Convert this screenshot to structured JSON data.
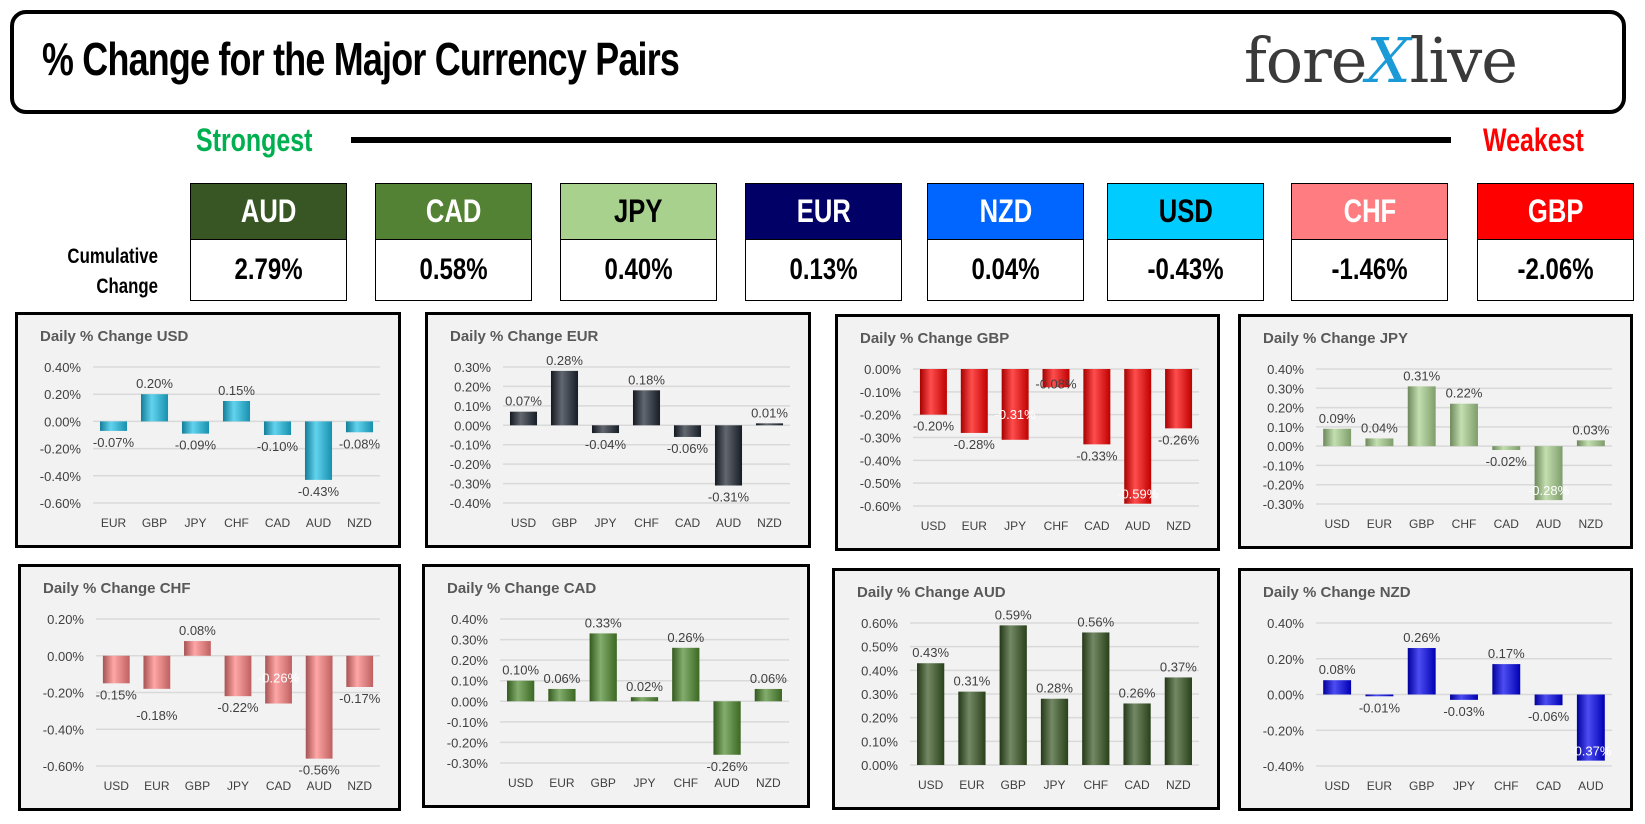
{
  "header": {
    "title": "% Change for the Major Currency Pairs",
    "logo": "forexlive"
  },
  "scale": {
    "strongest": "Strongest",
    "weakest": "Weakest",
    "strongest_color": "#00b050",
    "weakest_color": "#ff0000"
  },
  "cumulative": {
    "label_line1": "Cumulative",
    "label_line2": "Change",
    "items": [
      {
        "currency": "AUD",
        "value": "2.79%",
        "bg": "#375623",
        "fg": "#ffffff"
      },
      {
        "currency": "CAD",
        "value": "0.58%",
        "bg": "#548235",
        "fg": "#ffffff"
      },
      {
        "currency": "JPY",
        "value": "0.40%",
        "bg": "#a9d18e",
        "fg": "#000000"
      },
      {
        "currency": "EUR",
        "value": "0.13%",
        "bg": "#000066",
        "fg": "#ffffff"
      },
      {
        "currency": "NZD",
        "value": "0.04%",
        "bg": "#0066ff",
        "fg": "#ffffff"
      },
      {
        "currency": "USD",
        "value": "-0.43%",
        "bg": "#00ccff",
        "fg": "#000000"
      },
      {
        "currency": "CHF",
        "value": "-1.46%",
        "bg": "#ff7c80",
        "fg": "#ffffff"
      },
      {
        "currency": "GBP",
        "value": "-2.06%",
        "bg": "#ff0000",
        "fg": "#ffffff"
      }
    ]
  },
  "chart_data": [
    {
      "type": "bar",
      "title": "Daily % Change USD",
      "categories": [
        "EUR",
        "GBP",
        "JPY",
        "CHF",
        "CAD",
        "AUD",
        "NZD"
      ],
      "values": [
        -0.07,
        0.2,
        -0.09,
        0.15,
        -0.1,
        -0.43,
        -0.08
      ],
      "ylim": [
        -0.6,
        0.4
      ],
      "ytick_step": 0.2,
      "color": "#1ec0e8",
      "grid": true
    },
    {
      "type": "bar",
      "title": "Daily % Change EUR",
      "categories": [
        "USD",
        "GBP",
        "JPY",
        "CHF",
        "CAD",
        "AUD",
        "NZD"
      ],
      "values": [
        0.07,
        0.28,
        -0.04,
        0.18,
        -0.06,
        -0.31,
        0.01
      ],
      "ylim": [
        -0.4,
        0.3
      ],
      "ytick_step": 0.1,
      "color": "#1e2632",
      "grid": true
    },
    {
      "type": "bar",
      "title": "Daily % Change GBP",
      "categories": [
        "USD",
        "EUR",
        "JPY",
        "CHF",
        "CAD",
        "AUD",
        "NZD"
      ],
      "values": [
        -0.2,
        -0.28,
        -0.31,
        -0.08,
        -0.33,
        -0.59,
        -0.26
      ],
      "ylim": [
        -0.6,
        0.0
      ],
      "ytick_step": 0.1,
      "color": "#ff0000",
      "grid": true
    },
    {
      "type": "bar",
      "title": "Daily % Change JPY",
      "categories": [
        "USD",
        "EUR",
        "GBP",
        "CHF",
        "CAD",
        "AUD",
        "NZD"
      ],
      "values": [
        0.09,
        0.04,
        0.31,
        0.22,
        -0.02,
        -0.28,
        0.03
      ],
      "ylim": [
        -0.3,
        0.4
      ],
      "ytick_step": 0.1,
      "color": "#a9d18e",
      "grid": true
    },
    {
      "type": "bar",
      "title": "Daily % Change CHF",
      "categories": [
        "USD",
        "EUR",
        "GBP",
        "JPY",
        "CAD",
        "AUD",
        "NZD"
      ],
      "values": [
        -0.15,
        -0.18,
        0.08,
        -0.22,
        -0.26,
        -0.56,
        -0.17
      ],
      "ylim": [
        -0.6,
        0.2
      ],
      "ytick_step": 0.2,
      "color": "#ff8080",
      "grid": true
    },
    {
      "type": "bar",
      "title": "Daily % Change CAD",
      "categories": [
        "USD",
        "EUR",
        "GBP",
        "JPY",
        "CHF",
        "AUD",
        "NZD"
      ],
      "values": [
        0.1,
        0.06,
        0.33,
        0.02,
        0.26,
        -0.26,
        0.06
      ],
      "ylim": [
        -0.3,
        0.4
      ],
      "ytick_step": 0.1,
      "color": "#4e8a2e",
      "grid": true
    },
    {
      "type": "bar",
      "title": "Daily % Change AUD",
      "categories": [
        "USD",
        "EUR",
        "GBP",
        "JPY",
        "CHF",
        "CAD",
        "NZD"
      ],
      "values": [
        0.43,
        0.31,
        0.59,
        0.28,
        0.56,
        0.26,
        0.37
      ],
      "ylim": [
        0.0,
        0.6
      ],
      "ytick_step": 0.1,
      "color": "#375623",
      "grid": true
    },
    {
      "type": "bar",
      "title": "Daily % Change NZD",
      "categories": [
        "USD",
        "EUR",
        "GBP",
        "JPY",
        "CHF",
        "CAD",
        "AUD"
      ],
      "values": [
        0.08,
        -0.01,
        0.26,
        -0.03,
        0.17,
        -0.06,
        -0.37
      ],
      "ylim": [
        -0.4,
        0.4
      ],
      "ytick_step": 0.2,
      "color": "#0000ee",
      "grid": true
    }
  ]
}
